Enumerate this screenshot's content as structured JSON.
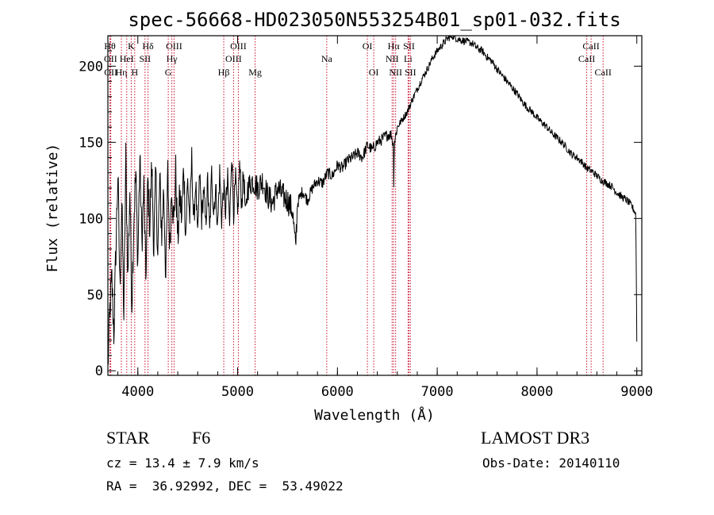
{
  "chart_data": {
    "type": "line",
    "title": "spec-56668-HD023050N553254B01_sp01-032.fits",
    "xlabel": "Wavelength (Å)",
    "ylabel": "Flux (relative)",
    "xlim": [
      3700,
      9050
    ],
    "ylim": [
      -3,
      220
    ],
    "xticks": [
      4000,
      5000,
      6000,
      7000,
      8000,
      9000
    ],
    "yticks": [
      0,
      50,
      100,
      150,
      200
    ],
    "series": [
      {
        "name": "flux",
        "x": [
          3700,
          3720,
          3740,
          3760,
          3780,
          3800,
          3820,
          3840,
          3860,
          3880,
          3900,
          3920,
          3940,
          3960,
          3980,
          4000,
          4020,
          4040,
          4060,
          4080,
          4100,
          4120,
          4140,
          4160,
          4180,
          4200,
          4220,
          4240,
          4260,
          4280,
          4300,
          4320,
          4340,
          4360,
          4380,
          4400,
          4420,
          4440,
          4460,
          4480,
          4500,
          4520,
          4540,
          4560,
          4580,
          4600,
          4620,
          4640,
          4660,
          4680,
          4700,
          4720,
          4740,
          4760,
          4780,
          4800,
          4820,
          4840,
          4860,
          4880,
          4900,
          4920,
          4940,
          4960,
          4980,
          5000,
          5020,
          5040,
          5060,
          5080,
          5100,
          5150,
          5200,
          5250,
          5300,
          5350,
          5400,
          5450,
          5500,
          5550,
          5580,
          5600,
          5650,
          5700,
          5750,
          5800,
          5850,
          5900,
          5950,
          6000,
          6050,
          6100,
          6150,
          6200,
          6250,
          6300,
          6350,
          6400,
          6450,
          6500,
          6540,
          6560,
          6563,
          6570,
          6600,
          6650,
          6700,
          6750,
          6800,
          6850,
          6900,
          6950,
          7000,
          7050,
          7100,
          7150,
          7200,
          7250,
          7300,
          7350,
          7400,
          7450,
          7500,
          7550,
          7600,
          7650,
          7700,
          7750,
          7800,
          7850,
          7900,
          7950,
          8000,
          8050,
          8100,
          8150,
          8200,
          8250,
          8300,
          8350,
          8400,
          8450,
          8500,
          8550,
          8600,
          8650,
          8700,
          8750,
          8800,
          8850,
          8900,
          8950,
          8990,
          9000
        ],
        "y": [
          2,
          40,
          60,
          25,
          80,
          130,
          55,
          110,
          35,
          140,
          60,
          120,
          45,
          100,
          130,
          70,
          140,
          85,
          120,
          60,
          125,
          95,
          135,
          80,
          130,
          75,
          125,
          90,
          120,
          60,
          130,
          80,
          125,
          95,
          130,
          85,
          115,
          100,
          135,
          90,
          125,
          100,
          140,
          95,
          125,
          85,
          130,
          100,
          120,
          95,
          125,
          90,
          130,
          105,
          120,
          95,
          130,
          100,
          120,
          105,
          125,
          95,
          145,
          105,
          125,
          100,
          135,
          110,
          130,
          100,
          120,
          125,
          120,
          125,
          115,
          110,
          120,
          115,
          112,
          105,
          80,
          110,
          118,
          112,
          120,
          125,
          123,
          130,
          128,
          135,
          133,
          138,
          140,
          143,
          140,
          148,
          145,
          150,
          152,
          155,
          155,
          148,
          120,
          150,
          160,
          165,
          170,
          178,
          185,
          192,
          198,
          205,
          210,
          214,
          218,
          220,
          218,
          217,
          216,
          215,
          212,
          210,
          206,
          203,
          198,
          194,
          190,
          186,
          182,
          177,
          173,
          170,
          166,
          163,
          160,
          156,
          153,
          150,
          146,
          142,
          140,
          137,
          133,
          131,
          128,
          125,
          123,
          121,
          117,
          114,
          112,
          108,
          103,
          20
        ]
      }
    ],
    "lines": [
      {
        "label": "Hθ",
        "x": 3720,
        "row": 1,
        "color": "#c8102e"
      },
      {
        "label": "OII",
        "x": 3727,
        "row": 2,
        "color": "#c8102e"
      },
      {
        "label": "OII",
        "x": 3729,
        "row": 3,
        "color": "#c8102e"
      },
      {
        "label": "Hη",
        "x": 3835,
        "row": 3,
        "color": "#c8102e"
      },
      {
        "label": "K",
        "x": 3934,
        "row": 1,
        "color": "#c8102e"
      },
      {
        "label": "HeI",
        "x": 3889,
        "row": 2,
        "color": "#c8102e"
      },
      {
        "label": "H",
        "x": 3969,
        "row": 3,
        "color": "#c8102e"
      },
      {
        "label": "SII",
        "x": 4072,
        "row": 2,
        "color": "#c8102e"
      },
      {
        "label": "Hδ",
        "x": 4102,
        "row": 1,
        "color": "#c8102e"
      },
      {
        "label": "OIII",
        "x": 4363,
        "row": 1,
        "color": "#c8102e"
      },
      {
        "label": "Hγ",
        "x": 4341,
        "row": 2,
        "color": "#c8102e"
      },
      {
        "label": "G",
        "x": 4305,
        "row": 3,
        "color": "#c8102e"
      },
      {
        "label": "Hβ",
        "x": 4861,
        "row": 3,
        "color": "#c8102e"
      },
      {
        "label": "OIII",
        "x": 4959,
        "row": 2,
        "color": "#c8102e"
      },
      {
        "label": "OIII",
        "x": 5007,
        "row": 1,
        "color": "#c8102e"
      },
      {
        "label": "Mg",
        "x": 5175,
        "row": 3,
        "color": "#c8102e"
      },
      {
        "label": "Na",
        "x": 5893,
        "row": 2,
        "color": "#c8102e"
      },
      {
        "label": "OI",
        "x": 6300,
        "row": 1,
        "color": "#c8102e"
      },
      {
        "label": "OI",
        "x": 6364,
        "row": 3,
        "color": "#c8102e"
      },
      {
        "label": "Hα",
        "x": 6563,
        "row": 1,
        "color": "#c8102e"
      },
      {
        "label": "NII",
        "x": 6548,
        "row": 2,
        "color": "#c8102e"
      },
      {
        "label": "NII",
        "x": 6583,
        "row": 3,
        "color": "#c8102e"
      },
      {
        "label": "SII",
        "x": 6717,
        "row": 1,
        "color": "#c8102e"
      },
      {
        "label": "Li",
        "x": 6708,
        "row": 2,
        "color": "#c8102e"
      },
      {
        "label": "SII",
        "x": 6731,
        "row": 3,
        "color": "#c8102e"
      },
      {
        "label": "CaII",
        "x": 8542,
        "row": 1,
        "color": "#c8102e"
      },
      {
        "label": "CaII",
        "x": 8498,
        "row": 2,
        "color": "#c8102e"
      },
      {
        "label": "CaII",
        "x": 8662,
        "row": 3,
        "color": "#c8102e"
      }
    ]
  },
  "footer": {
    "object_type": "STAR",
    "subclass": "F6",
    "survey": "LAMOST DR3",
    "redshift": "cz = 13.4 ± 7.9 km/s",
    "obs_date": "Obs-Date: 20140110",
    "coords": "RA =  36.92992, DEC =  53.49022"
  },
  "colors": {
    "axes": "#000000",
    "spectrum": "#000000",
    "line_marker": "#c8102e"
  }
}
